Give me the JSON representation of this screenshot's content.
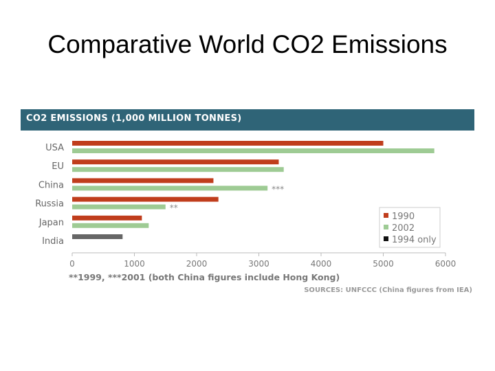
{
  "slide": {
    "title": "Comparative World CO2 Emissions"
  },
  "chart_data": {
    "type": "bar",
    "orientation": "horizontal",
    "title": "CO2 EMISSIONS (1,000 MILLION TONNES)",
    "categories": [
      "USA",
      "EU",
      "China",
      "Russia",
      "Japan",
      "India"
    ],
    "series": [
      {
        "name": "1990",
        "color": "#c03d1c",
        "values": [
          5000,
          3320,
          2270,
          2350,
          1120,
          null
        ]
      },
      {
        "name": "2002",
        "color": "#9ecb94",
        "values": [
          5820,
          3400,
          3140,
          1500,
          1230,
          null
        ]
      },
      {
        "name": "1994 only",
        "color": "#666666",
        "values": [
          null,
          null,
          null,
          null,
          null,
          810
        ]
      }
    ],
    "annotations": [
      {
        "category": "China",
        "series": "2002",
        "text": "***"
      },
      {
        "category": "Russia",
        "series": "2002",
        "text": "**"
      }
    ],
    "xlim": [
      0,
      6000
    ],
    "xticks": [
      0,
      1000,
      2000,
      3000,
      4000,
      5000,
      6000
    ],
    "xlabel": "",
    "ylabel": "",
    "legend_position": "bottom-right",
    "grid": false,
    "footnote": "**1999, ***2001 (both China figures include Hong Kong)",
    "source": "SOURCES: UNFCCC (China figures from IEA)",
    "header_color": "#2f6477"
  }
}
